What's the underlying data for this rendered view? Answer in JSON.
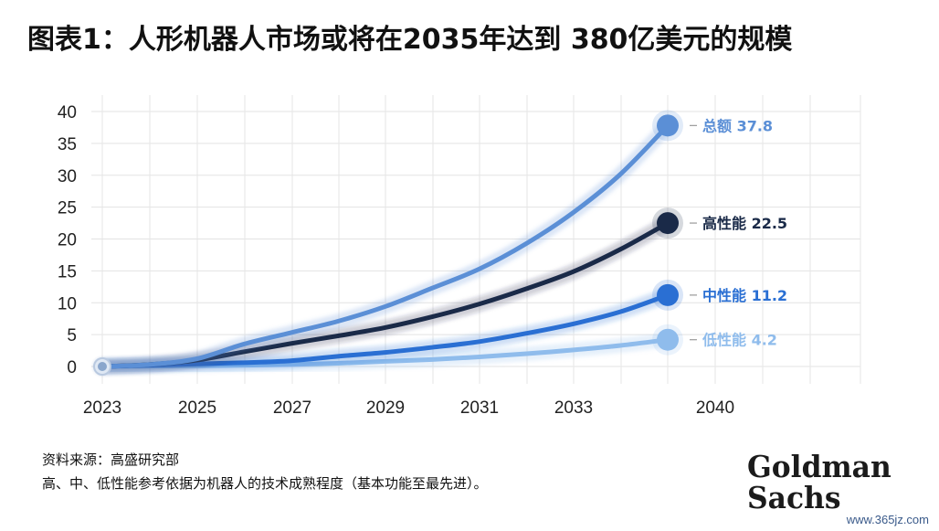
{
  "title": "图表1：人形机器人市场或将在2035年达到 380亿美元的规模",
  "footer": {
    "source": "资料来源：高盛研究部",
    "note": "高、中、低性能参考依据为机器人的技术成熟程度（基本功能至最先进）。"
  },
  "logo": {
    "line1": "Goldman",
    "line2": "Sachs"
  },
  "watermark": "www.365jz.com",
  "chart_data": {
    "type": "line",
    "x_ticks": [
      "2023",
      "2025",
      "2027",
      "2029",
      "2031",
      "2033",
      "2040"
    ],
    "ylim": [
      0,
      40
    ],
    "y_ticks": [
      0,
      5,
      10,
      15,
      20,
      25,
      30,
      35,
      40
    ],
    "grid": true,
    "x": [
      2023,
      2024,
      2025,
      2026,
      2027,
      2028,
      2029,
      2030,
      2031,
      2032,
      2033,
      2034,
      2035
    ],
    "series": [
      {
        "name": "总额",
        "end_value": "37.8",
        "color": "#5b8fd6",
        "values": [
          0,
          0.3,
          1.2,
          3.5,
          5.3,
          7.1,
          9.4,
          12.3,
          15.3,
          19.3,
          24.2,
          30.2,
          37.8
        ]
      },
      {
        "name": "高性能",
        "end_value": "22.5",
        "color": "#1a2a48",
        "values": [
          0,
          0.3,
          1.0,
          2.3,
          3.6,
          4.8,
          6.1,
          7.8,
          9.8,
          12.2,
          14.9,
          18.4,
          22.5
        ]
      },
      {
        "name": "中性能",
        "end_value": "11.2",
        "color": "#2a6fd3",
        "values": [
          0,
          0.2,
          0.4,
          0.6,
          0.9,
          1.6,
          2.2,
          3.0,
          3.9,
          5.2,
          6.7,
          8.6,
          11.2
        ]
      },
      {
        "name": "低性能",
        "end_value": "4.2",
        "color": "#8fbcec",
        "values": [
          0,
          0.05,
          0.1,
          0.2,
          0.3,
          0.5,
          0.8,
          1.1,
          1.5,
          2.0,
          2.6,
          3.3,
          4.2
        ]
      }
    ]
  }
}
